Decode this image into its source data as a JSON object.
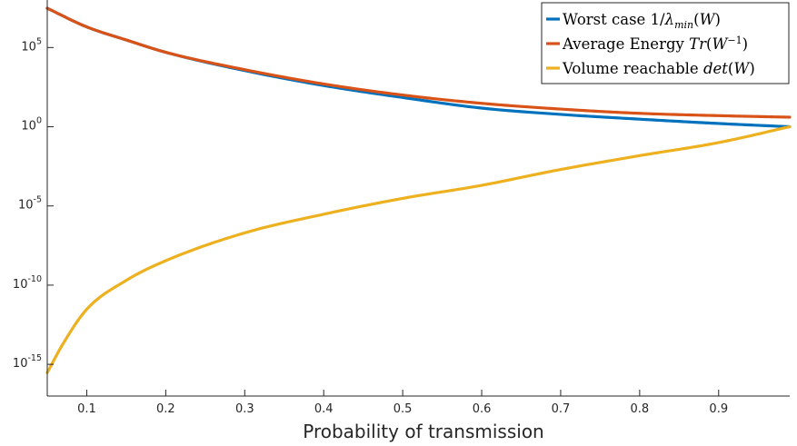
{
  "chart_data": {
    "type": "line",
    "title": "",
    "xlabel": "Probability of transmission",
    "ylabel": "",
    "xlim": [
      0.05,
      0.99
    ],
    "ylim_log10": [
      -17,
      8
    ],
    "y_scale": "log",
    "grid": false,
    "legend_position": "top-right",
    "x_ticks": [
      {
        "value": 0.1,
        "label": "0.1"
      },
      {
        "value": 0.2,
        "label": "0.2"
      },
      {
        "value": 0.3,
        "label": "0.3"
      },
      {
        "value": 0.4,
        "label": "0.4"
      },
      {
        "value": 0.5,
        "label": "0.5"
      },
      {
        "value": 0.6,
        "label": "0.6"
      },
      {
        "value": 0.7,
        "label": "0.7"
      },
      {
        "value": 0.8,
        "label": "0.8"
      },
      {
        "value": 0.9,
        "label": "0.9"
      }
    ],
    "y_ticks": [
      {
        "exp": 5,
        "base": "10",
        "sup": "5"
      },
      {
        "exp": 0,
        "base": "10",
        "sup": "0"
      },
      {
        "exp": -5,
        "base": "10",
        "sup": "-5"
      },
      {
        "exp": -10,
        "base": "10",
        "sup": "-10"
      },
      {
        "exp": -15,
        "base": "10",
        "sup": "-15"
      }
    ],
    "series": [
      {
        "name": "Worst case 1/λmin(W)",
        "legend_parts": [
          {
            "text": "Worst case 1/",
            "italic": false
          },
          {
            "text": "λ",
            "italic": true
          },
          {
            "text": "min",
            "italic": true,
            "sub": true
          },
          {
            "text": "(",
            "italic": false
          },
          {
            "text": "W",
            "italic": true
          },
          {
            "text": ")",
            "italic": false
          }
        ],
        "color": "#0072BD",
        "x": [
          0.05,
          0.1,
          0.15,
          0.2,
          0.3,
          0.4,
          0.5,
          0.6,
          0.7,
          0.8,
          0.9,
          0.99
        ],
        "y": [
          30000000.0,
          2000000.0,
          300000.0,
          50000.0,
          3500.0,
          400.0,
          70.0,
          15.0,
          6.0,
          3.0,
          1.6,
          1.0
        ]
      },
      {
        "name": "Average Energy Tr(W^-1)",
        "legend_parts": [
          {
            "text": "Average Energy ",
            "italic": false
          },
          {
            "text": "Tr",
            "italic": true
          },
          {
            "text": "(",
            "italic": false
          },
          {
            "text": "W",
            "italic": true
          },
          {
            "text": "−1",
            "italic": false,
            "sup": true
          },
          {
            "text": ")",
            "italic": false
          }
        ],
        "color": "#D95319",
        "x": [
          0.05,
          0.1,
          0.15,
          0.2,
          0.3,
          0.4,
          0.5,
          0.6,
          0.7,
          0.8,
          0.9,
          0.99
        ],
        "y": [
          30000000.0,
          2000000.0,
          300000.0,
          50000.0,
          4000.0,
          500.0,
          100.0,
          30.0,
          13.0,
          7.0,
          5.0,
          4.0
        ]
      },
      {
        "name": "Volume reachable det(W)",
        "legend_parts": [
          {
            "text": "Volume reachable ",
            "italic": false
          },
          {
            "text": "det",
            "italic": true
          },
          {
            "text": "(",
            "italic": false
          },
          {
            "text": "W",
            "italic": true
          },
          {
            "text": ")",
            "italic": false
          }
        ],
        "color": "#EDB120",
        "x": [
          0.05,
          0.07,
          0.1,
          0.15,
          0.2,
          0.3,
          0.4,
          0.5,
          0.6,
          0.7,
          0.8,
          0.9,
          0.99
        ],
        "y": [
          3e-16,
          2e-14,
          3e-12,
          2e-10,
          3.5e-09,
          2e-07,
          3e-06,
          3e-05,
          0.0002,
          0.002,
          0.015,
          0.1,
          1.0
        ]
      }
    ]
  }
}
